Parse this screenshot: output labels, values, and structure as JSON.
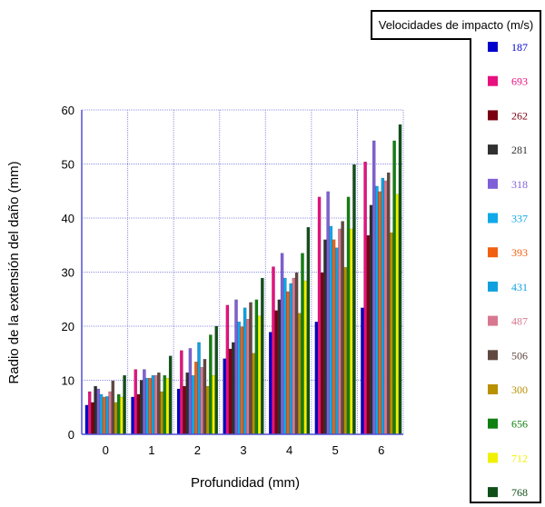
{
  "chart_data": {
    "type": "bar",
    "title": "",
    "xlabel": "Profundidad (mm)",
    "ylabel": "Radio de la extensión del daño (mm)",
    "ylim": [
      0,
      60
    ],
    "yticks": [
      "0",
      "10",
      "20",
      "30",
      "40",
      "50",
      "60"
    ],
    "categories": [
      "0",
      "1",
      "2",
      "3",
      "4",
      "5",
      "6"
    ],
    "grid": true,
    "legend": {
      "title": "Velocidades de impacto (m/s)",
      "placement": "right"
    },
    "series": [
      {
        "name": "187",
        "color": "#0000cc",
        "values": [
          5.4,
          6.9,
          8.4,
          14.0,
          18.9,
          20.8,
          23.4
        ]
      },
      {
        "name": "693",
        "color": "#e8107f",
        "values": [
          7.9,
          12.0,
          15.5,
          23.9,
          31.0,
          43.9,
          50.4
        ]
      },
      {
        "name": "262",
        "color": "#7a0010",
        "values": [
          5.9,
          7.4,
          8.9,
          15.8,
          22.9,
          29.9,
          36.8
        ]
      },
      {
        "name": "281",
        "color": "#303030",
        "values": [
          8.9,
          10.0,
          11.4,
          17.0,
          24.9,
          36.0,
          42.4
        ]
      },
      {
        "name": "318",
        "color": "#7f5fd8",
        "values": [
          8.4,
          12.0,
          15.9,
          24.9,
          33.5,
          44.9,
          54.3
        ]
      },
      {
        "name": "337",
        "color": "#10a8e8",
        "values": [
          7.4,
          10.4,
          10.9,
          20.8,
          28.9,
          38.5,
          45.9
        ]
      },
      {
        "name": "393",
        "color": "#f06010",
        "values": [
          6.9,
          10.4,
          13.4,
          19.9,
          26.4,
          36.0,
          44.9
        ]
      },
      {
        "name": "431",
        "color": "#10a0e0",
        "values": [
          7.0,
          10.9,
          17.0,
          23.4,
          27.9,
          34.5,
          47.4
        ]
      },
      {
        "name": "487",
        "color": "#d87890",
        "values": [
          7.9,
          10.9,
          12.4,
          21.3,
          28.9,
          38.0,
          46.9
        ]
      },
      {
        "name": "506",
        "color": "#604840",
        "values": [
          9.9,
          11.4,
          13.9,
          24.4,
          29.9,
          39.4,
          48.4
        ]
      },
      {
        "name": "300",
        "color": "#b89000",
        "values": [
          5.9,
          7.9,
          8.9,
          15.0,
          22.4,
          30.9,
          37.3
        ]
      },
      {
        "name": "656",
        "color": "#108010",
        "values": [
          7.4,
          10.9,
          18.4,
          24.9,
          33.5,
          43.9,
          54.3
        ]
      },
      {
        "name": "712",
        "color": "#f0f000",
        "values": [
          6.9,
          10.4,
          10.9,
          21.9,
          28.4,
          38.0,
          44.4
        ]
      },
      {
        "name": "768",
        "color": "#105018",
        "values": [
          10.9,
          14.5,
          20.0,
          28.9,
          38.3,
          49.9,
          57.3
        ]
      }
    ]
  }
}
